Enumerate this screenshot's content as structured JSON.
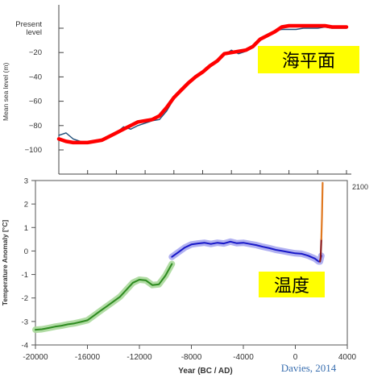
{
  "chart_data": [
    {
      "type": "line",
      "ylabel": "Mean sea level (m)",
      "y_ticks": [
        {
          "value": 0,
          "label": "Present\nlevel"
        },
        {
          "value": -20,
          "label": "−20"
        },
        {
          "value": -40,
          "label": "−40"
        },
        {
          "value": -60,
          "label": "−60"
        },
        {
          "value": -80,
          "label": "−80"
        },
        {
          "value": -100,
          "label": "−100"
        }
      ],
      "ylim": [
        -115,
        10
      ],
      "xlim": [
        -20000,
        0
      ],
      "annotation": "海平面",
      "annotation_bg": "#ffff00",
      "series": [
        {
          "color": "#1f4e79",
          "points": [
            [
              -20000,
              -88
            ],
            [
              -19500,
              -86
            ],
            [
              -19000,
              -91
            ],
            [
              -18500,
              -93
            ],
            [
              -18000,
              -94
            ],
            [
              -17500,
              -93
            ],
            [
              -17000,
              -92
            ],
            [
              -16500,
              -89
            ],
            [
              -16000,
              -86
            ],
            [
              -15500,
              -81
            ],
            [
              -15000,
              -83
            ],
            [
              -14500,
              -80
            ],
            [
              -14000,
              -78
            ],
            [
              -13500,
              -76
            ],
            [
              -13000,
              -75
            ],
            [
              -12500,
              -68
            ],
            [
              -12000,
              -58
            ],
            [
              -11500,
              -50
            ],
            [
              -11000,
              -45
            ],
            [
              -10500,
              -40
            ],
            [
              -10000,
              -35
            ],
            [
              -9500,
              -31
            ],
            [
              -9000,
              -26
            ],
            [
              -8500,
              -22
            ],
            [
              -8000,
              -18
            ],
            [
              -7500,
              -21
            ],
            [
              -7000,
              -19
            ],
            [
              -6500,
              -15
            ],
            [
              -6000,
              -8
            ],
            [
              -5500,
              -5
            ],
            [
              -5000,
              -2
            ],
            [
              -4500,
              -1
            ],
            [
              -4000,
              -1
            ],
            [
              -3500,
              -1
            ],
            [
              -3000,
              0
            ],
            [
              -2500,
              0
            ],
            [
              -2000,
              0
            ],
            [
              -1500,
              1
            ],
            [
              -1000,
              0
            ],
            [
              -500,
              0
            ],
            [
              0,
              0
            ]
          ]
        },
        {
          "color": "#ff0000",
          "points": [
            [
              -20000,
              -91
            ],
            [
              -19500,
              -93
            ],
            [
              -19000,
              -94
            ],
            [
              -18500,
              -94
            ],
            [
              -18000,
              -94
            ],
            [
              -17500,
              -93
            ],
            [
              -17000,
              -92
            ],
            [
              -16500,
              -89
            ],
            [
              -16000,
              -86
            ],
            [
              -15500,
              -83
            ],
            [
              -15000,
              -80
            ],
            [
              -14500,
              -77
            ],
            [
              -14000,
              -76
            ],
            [
              -13500,
              -75
            ],
            [
              -13000,
              -72
            ],
            [
              -12500,
              -65
            ],
            [
              -12000,
              -57
            ],
            [
              -11500,
              -51
            ],
            [
              -11000,
              -45
            ],
            [
              -10500,
              -40
            ],
            [
              -10000,
              -36
            ],
            [
              -9500,
              -31
            ],
            [
              -9000,
              -27
            ],
            [
              -8500,
              -21
            ],
            [
              -8000,
              -20
            ],
            [
              -7500,
              -19
            ],
            [
              -7000,
              -18
            ],
            [
              -6500,
              -15
            ],
            [
              -6000,
              -9
            ],
            [
              -5500,
              -6
            ],
            [
              -5000,
              -3
            ],
            [
              -4500,
              1
            ],
            [
              -4000,
              2
            ],
            [
              -3500,
              2
            ],
            [
              -3000,
              2
            ],
            [
              -2500,
              2
            ],
            [
              -2000,
              2
            ],
            [
              -1500,
              2
            ],
            [
              -1000,
              1
            ],
            [
              -500,
              1
            ],
            [
              0,
              1
            ]
          ]
        }
      ]
    },
    {
      "type": "line",
      "xlabel": "Year (BC / AD)",
      "ylabel": "Temperature Anomaly [°C]",
      "x_ticks": [
        -20000,
        -16000,
        -12000,
        -8000,
        -4000,
        0,
        4000
      ],
      "x_tick_labels": [
        "-20000",
        "-16000",
        "-12000",
        "-8000",
        "-4000",
        "0",
        "4000"
      ],
      "y_ticks": [
        3,
        2,
        1,
        0,
        -1,
        -2,
        -3,
        -4
      ],
      "xlim": [
        -20000,
        4000
      ],
      "ylim": [
        -4,
        3
      ],
      "annotation": "温度",
      "annotation_bg": "#ffff00",
      "end_label": "2100",
      "series": [
        {
          "color": "#2e8b20",
          "band_color": "#a8d89a",
          "points": [
            [
              -20000,
              -3.35
            ],
            [
              -19500,
              -3.33
            ],
            [
              -19000,
              -3.28
            ],
            [
              -18500,
              -3.22
            ],
            [
              -18000,
              -3.18
            ],
            [
              -17500,
              -3.12
            ],
            [
              -17000,
              -3.08
            ],
            [
              -16500,
              -3.02
            ],
            [
              -16000,
              -2.95
            ],
            [
              -15500,
              -2.75
            ],
            [
              -15000,
              -2.55
            ],
            [
              -14500,
              -2.35
            ],
            [
              -14000,
              -2.15
            ],
            [
              -13500,
              -1.95
            ],
            [
              -13000,
              -1.65
            ],
            [
              -12500,
              -1.35
            ],
            [
              -12000,
              -1.22
            ],
            [
              -11500,
              -1.25
            ],
            [
              -11000,
              -1.45
            ],
            [
              -10500,
              -1.42
            ],
            [
              -10000,
              -1.05
            ],
            [
              -9500,
              -0.55
            ]
          ]
        },
        {
          "color": "#1818c8",
          "band_color": "#a8a8f0",
          "points": [
            [
              -9500,
              -0.25
            ],
            [
              -9000,
              -0.05
            ],
            [
              -8500,
              0.15
            ],
            [
              -8000,
              0.28
            ],
            [
              -7500,
              0.32
            ],
            [
              -7000,
              0.35
            ],
            [
              -6500,
              0.3
            ],
            [
              -6000,
              0.35
            ],
            [
              -5500,
              0.32
            ],
            [
              -5000,
              0.4
            ],
            [
              -4500,
              0.33
            ],
            [
              -4000,
              0.35
            ],
            [
              -3500,
              0.3
            ],
            [
              -3000,
              0.25
            ],
            [
              -2500,
              0.18
            ],
            [
              -2000,
              0.12
            ],
            [
              -1500,
              0.05
            ],
            [
              -1000,
              0.0
            ],
            [
              -500,
              -0.05
            ],
            [
              0,
              -0.1
            ],
            [
              500,
              -0.12
            ],
            [
              1000,
              -0.2
            ],
            [
              1500,
              -0.32
            ],
            [
              1800,
              -0.45
            ],
            [
              1900,
              -0.45
            ],
            [
              2000,
              -0.2
            ]
          ]
        },
        {
          "color": "#8b1a1a",
          "points": [
            [
              1900,
              -0.45
            ],
            [
              1950,
              -0.3
            ],
            [
              2000,
              0.5
            ]
          ]
        },
        {
          "color": "#e07820",
          "points": [
            [
              2000,
              0.5
            ],
            [
              2050,
              1.5
            ],
            [
              2100,
              2.9
            ]
          ]
        }
      ]
    }
  ],
  "credit": "Davies, 2014"
}
